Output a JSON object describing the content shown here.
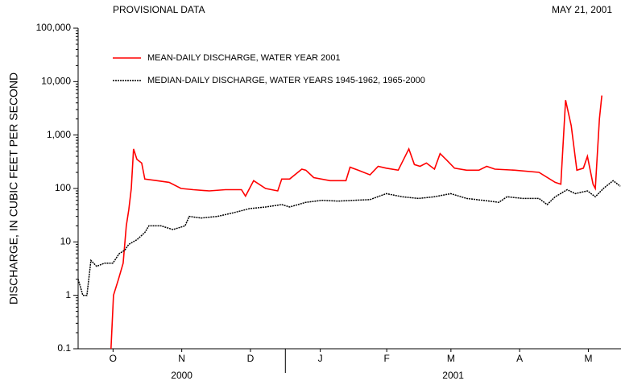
{
  "chart_data": {
    "type": "line",
    "title": "PROVISIONAL DATA",
    "date": "MAY 21, 2001",
    "ylabel": "DISCHARGE, IN CUBIC FEET PER SECOND",
    "log_y": true,
    "ylim": [
      0.1,
      100000
    ],
    "yticks": [
      0.1,
      1,
      10,
      100,
      {
        "value": 1000,
        "label": "1,000"
      },
      {
        "value": 10000,
        "label": "10,000"
      },
      {
        "value": 100000,
        "label": "100,000"
      }
    ],
    "xlim": [
      0,
      241
    ],
    "xticks": [
      {
        "value": 15.5,
        "label": "O"
      },
      {
        "value": 46,
        "label": "N"
      },
      {
        "value": 76.5,
        "label": "D"
      },
      {
        "value": 107.5,
        "label": "J"
      },
      {
        "value": 137,
        "label": "F"
      },
      {
        "value": 165.5,
        "label": "M"
      },
      {
        "value": 196,
        "label": "A"
      },
      {
        "value": 226.5,
        "label": "M"
      }
    ],
    "x_groups": [
      {
        "label": "2000",
        "start": 0,
        "end": 92
      },
      {
        "label": "2001",
        "start": 92,
        "end": 241
      }
    ],
    "legend": "upper left",
    "series": [
      {
        "name": "MEAN-DAILY DISCHARGE, WATER YEAR 2001",
        "color": "#ff0000",
        "x": [
          14.6,
          15.7,
          17.9,
          20,
          21.4,
          22.5,
          23.6,
          24.6,
          26.1,
          28.2,
          29.6,
          35,
          40.4,
          45.7,
          51.1,
          58.2,
          65.4,
          72.5,
          74.3,
          77.9,
          83.2,
          88.6,
          90.4,
          93.9,
          99.3,
          101.1,
          104.6,
          111.8,
          118.9,
          120.7,
          124.3,
          129.6,
          133.2,
          136.8,
          142.1,
          146.8,
          149.3,
          151.8,
          154.6,
          158.2,
          160.7,
          163.6,
          167.1,
          172.5,
          177.9,
          181.4,
          185,
          193.9,
          204.6,
          211.8,
          214.3,
          216.4,
          218.9,
          221.4,
          224.3,
          226.1,
          228.6,
          229.6,
          231.4,
          232.5
        ],
        "values": [
          0.1,
          1,
          2,
          4,
          20,
          40,
          100,
          550,
          350,
          300,
          150,
          140,
          130,
          100,
          95,
          90,
          95,
          95,
          72,
          140,
          100,
          90,
          150,
          150,
          230,
          220,
          160,
          140,
          140,
          250,
          220,
          180,
          260,
          240,
          220,
          550,
          280,
          260,
          300,
          230,
          450,
          340,
          240,
          220,
          220,
          260,
          230,
          220,
          200,
          130,
          120,
          4500,
          1500,
          220,
          240,
          400,
          120,
          100,
          2000,
          5500
        ]
      },
      {
        "name": "MEDIAN-DAILY DISCHARGE, WATER YEARS 1945-1962, 1965-2000",
        "color": "#000000",
        "dash": true,
        "x": [
          0,
          2.1,
          3.9,
          5.7,
          8.2,
          11.8,
          15.4,
          18.2,
          20.7,
          22.5,
          26.1,
          29.6,
          31.4,
          36.8,
          42.1,
          47.5,
          49.3,
          54.6,
          61.8,
          68.9,
          76.1,
          83.2,
          90.4,
          93.9,
          101.1,
          108.2,
          115.4,
          122.5,
          129.6,
          136.8,
          143.9,
          151.1,
          158.2,
          165.4,
          172.5,
          179.6,
          186.8,
          190.4,
          197.5,
          204.6,
          208.2,
          211.8,
          217.1,
          220.7,
          226.1,
          229.6,
          233.2,
          237.5,
          240.7
        ],
        "values": [
          2,
          1,
          1,
          4.5,
          3.5,
          4,
          4,
          6,
          7,
          9,
          11,
          15,
          20,
          20,
          17,
          20,
          30,
          28,
          30,
          35,
          42,
          45,
          50,
          45,
          55,
          60,
          58,
          60,
          62,
          80,
          70,
          65,
          70,
          80,
          65,
          60,
          55,
          70,
          65,
          65,
          50,
          70,
          95,
          80,
          90,
          70,
          100,
          140,
          110
        ]
      }
    ]
  }
}
